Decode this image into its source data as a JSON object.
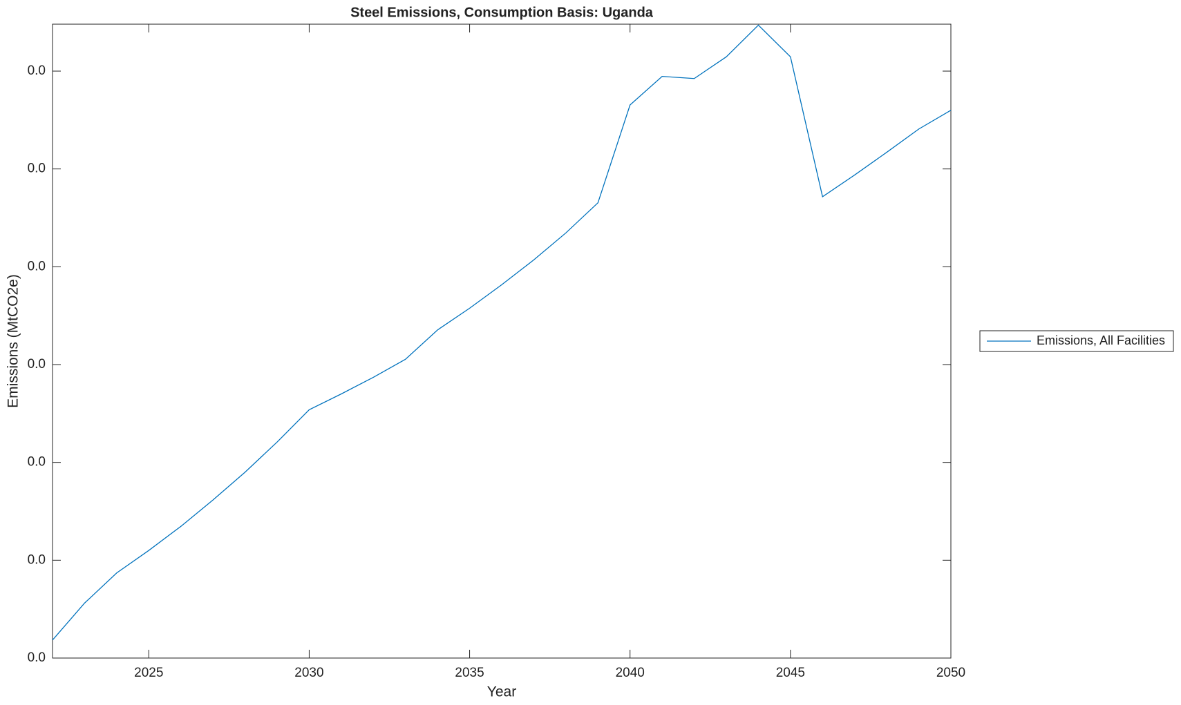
{
  "chart_data": {
    "type": "line",
    "title": "Steel Emissions, Consumption Basis: Uganda",
    "x_label": "Year",
    "y_label": "Emissions (MtCO2e)",
    "x": [
      2022,
      2023,
      2024,
      2025,
      2026,
      2027,
      2028,
      2029,
      2030,
      2031,
      2032,
      2033,
      2034,
      2035,
      2036,
      2037,
      2038,
      2039,
      2040,
      2041,
      2042,
      2043,
      2044,
      2045,
      2046,
      2047,
      2048,
      2049,
      2050
    ],
    "series": [
      {
        "name": "Emissions, All Facilities",
        "color": "#0072bd",
        "values": [
          0.00092,
          0.00281,
          0.00435,
          0.0055,
          0.00673,
          0.00808,
          0.0095,
          0.01104,
          0.01269,
          0.0135,
          0.01435,
          0.01527,
          0.01677,
          0.01788,
          0.01908,
          0.02035,
          0.02173,
          0.02327,
          0.02827,
          0.02973,
          0.02962,
          0.03073,
          0.03235,
          0.03073,
          0.02358,
          0.02469,
          0.02585,
          0.02704,
          0.028
        ]
      }
    ],
    "xlim": [
      2022,
      2050
    ],
    "xticks": [
      2025,
      2030,
      2035,
      2040,
      2045,
      2050
    ],
    "ylim": [
      0,
      0.0324
    ],
    "yticks": [
      {
        "value": 0,
        "label": "0.0"
      },
      {
        "value": 0.005,
        "label": "0.0"
      },
      {
        "value": 0.01,
        "label": "0.0"
      },
      {
        "value": 0.015,
        "label": "0.0"
      },
      {
        "value": 0.02,
        "label": "0.0"
      },
      {
        "value": 0.025,
        "label": "0.0"
      },
      {
        "value": 0.03,
        "label": "0.0"
      }
    ],
    "legend": "outside-right"
  }
}
